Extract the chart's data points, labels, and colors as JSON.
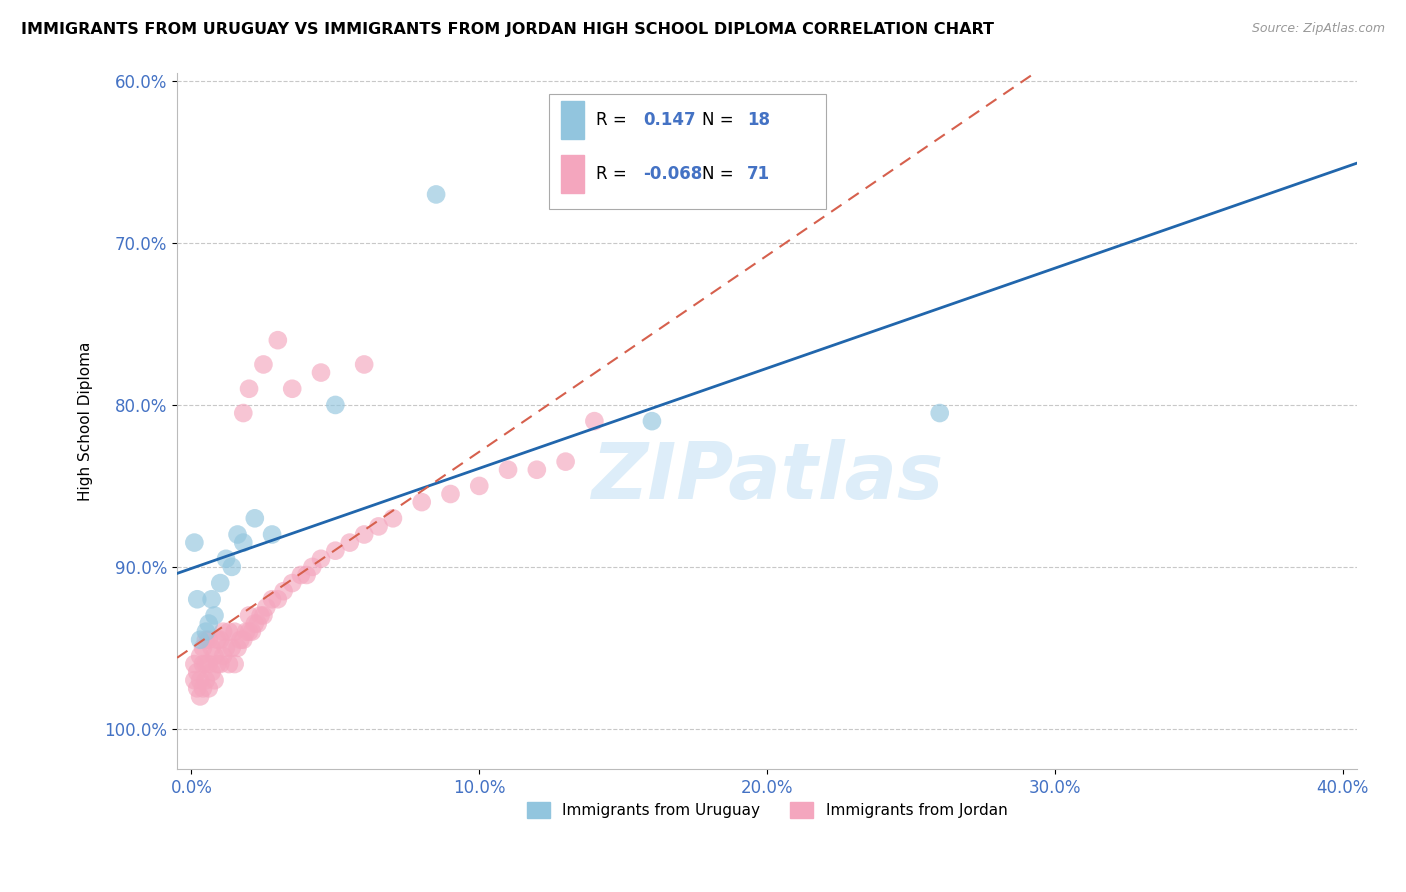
{
  "title": "IMMIGRANTS FROM URUGUAY VS IMMIGRANTS FROM JORDAN HIGH SCHOOL DIPLOMA CORRELATION CHART",
  "source": "Source: ZipAtlas.com",
  "ylabel": "High School Diploma",
  "legend_labels": [
    "Immigrants from Uruguay",
    "Immigrants from Jordan"
  ],
  "legend_r_values": [
    "0.147",
    "-0.068"
  ],
  "legend_n_values": [
    "18",
    "71"
  ],
  "x_tick_labels": [
    "0.0%",
    "10.0%",
    "20.0%",
    "30.0%",
    "40.0%"
  ],
  "y_tick_labels": [
    "100.0%",
    "90.0%",
    "80.0%",
    "70.0%",
    "60.0%"
  ],
  "xlim": [
    -0.005,
    0.405
  ],
  "ylim": [
    1.025,
    0.595
  ],
  "x_ticks": [
    0.0,
    0.1,
    0.2,
    0.3,
    0.4
  ],
  "y_ticks": [
    1.0,
    0.9,
    0.8,
    0.7,
    0.6
  ],
  "color_uruguay": "#92c5de",
  "color_jordan": "#f4a6be",
  "line_color_uruguay": "#2166ac",
  "line_color_jordan": "#d6604d",
  "background_color": "#ffffff",
  "grid_color": "#c8c8c8",
  "watermark": "ZIPatlas",
  "uruguay_x": [
    0.001,
    0.002,
    0.003,
    0.005,
    0.006,
    0.007,
    0.008,
    0.01,
    0.012,
    0.014,
    0.016,
    0.018,
    0.022,
    0.028,
    0.16,
    0.26,
    0.05,
    0.085
  ],
  "uruguay_y": [
    0.885,
    0.92,
    0.945,
    0.94,
    0.935,
    0.92,
    0.93,
    0.91,
    0.895,
    0.9,
    0.88,
    0.885,
    0.87,
    0.88,
    0.81,
    0.805,
    0.8,
    0.67
  ],
  "jordan_x": [
    0.001,
    0.001,
    0.002,
    0.002,
    0.003,
    0.003,
    0.003,
    0.004,
    0.004,
    0.004,
    0.005,
    0.005,
    0.005,
    0.006,
    0.006,
    0.006,
    0.007,
    0.007,
    0.008,
    0.008,
    0.009,
    0.009,
    0.01,
    0.01,
    0.011,
    0.011,
    0.012,
    0.013,
    0.013,
    0.014,
    0.015,
    0.015,
    0.016,
    0.017,
    0.018,
    0.019,
    0.02,
    0.02,
    0.021,
    0.022,
    0.023,
    0.024,
    0.025,
    0.026,
    0.028,
    0.03,
    0.032,
    0.035,
    0.038,
    0.04,
    0.042,
    0.045,
    0.05,
    0.055,
    0.06,
    0.065,
    0.07,
    0.08,
    0.09,
    0.1,
    0.11,
    0.12,
    0.13,
    0.14,
    0.06,
    0.045,
    0.035,
    0.03,
    0.025,
    0.02,
    0.018
  ],
  "jordan_y": [
    0.97,
    0.96,
    0.975,
    0.965,
    0.98,
    0.97,
    0.955,
    0.975,
    0.96,
    0.95,
    0.97,
    0.96,
    0.945,
    0.975,
    0.96,
    0.945,
    0.965,
    0.95,
    0.97,
    0.955,
    0.96,
    0.945,
    0.96,
    0.945,
    0.955,
    0.94,
    0.95,
    0.96,
    0.94,
    0.95,
    0.96,
    0.94,
    0.95,
    0.945,
    0.945,
    0.94,
    0.94,
    0.93,
    0.94,
    0.935,
    0.935,
    0.93,
    0.93,
    0.925,
    0.92,
    0.92,
    0.915,
    0.91,
    0.905,
    0.905,
    0.9,
    0.895,
    0.89,
    0.885,
    0.88,
    0.875,
    0.87,
    0.86,
    0.855,
    0.85,
    0.84,
    0.84,
    0.835,
    0.81,
    0.775,
    0.78,
    0.79,
    0.76,
    0.775,
    0.79,
    0.805
  ]
}
